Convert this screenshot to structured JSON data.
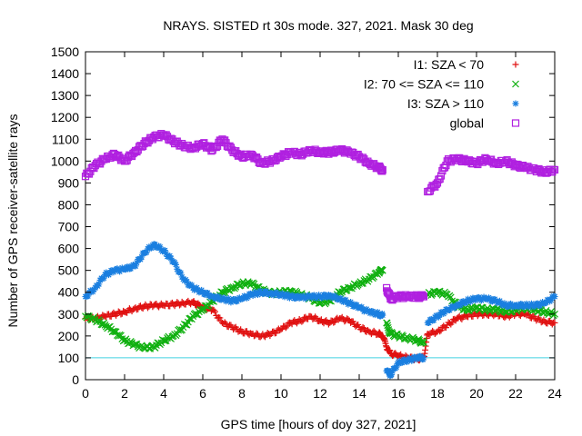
{
  "chart_data": {
    "type": "scatter",
    "title": "NRAYS. SISTED rt 30s mode. 327, 2021. Mask 30 deg",
    "xlabel": "GPS time [hours of doy 327, 2021]",
    "ylabel": "Number of GPS receiver-satellite rays",
    "xlim": [
      0,
      24
    ],
    "ylim": [
      0,
      1500
    ],
    "xticks": [
      0,
      2,
      4,
      6,
      8,
      10,
      12,
      14,
      16,
      18,
      20,
      22,
      24
    ],
    "yticks": [
      0,
      100,
      200,
      300,
      400,
      500,
      600,
      700,
      800,
      900,
      1000,
      1100,
      1200,
      1300,
      1400,
      1500
    ],
    "legend_position": "top-right",
    "reference_line": {
      "y": 100,
      "color": "#40d0e0"
    },
    "series": [
      {
        "name": "I1: SZA < 70",
        "marker": "+",
        "color": "#e01010",
        "points": [
          [
            0,
            280
          ],
          [
            0.5,
            280
          ],
          [
            1,
            290
          ],
          [
            1.5,
            300
          ],
          [
            2,
            310
          ],
          [
            2.5,
            325
          ],
          [
            3,
            335
          ],
          [
            3.5,
            340
          ],
          [
            4,
            340
          ],
          [
            4.5,
            345
          ],
          [
            5,
            350
          ],
          [
            5.5,
            355
          ],
          [
            5.8,
            340
          ],
          [
            6,
            330
          ],
          [
            6.5,
            320
          ],
          [
            7,
            260
          ],
          [
            7.5,
            240
          ],
          [
            8,
            220
          ],
          [
            8.5,
            210
          ],
          [
            9,
            200
          ],
          [
            9.5,
            210
          ],
          [
            10,
            230
          ],
          [
            10.5,
            260
          ],
          [
            11,
            270
          ],
          [
            11.5,
            290
          ],
          [
            12,
            270
          ],
          [
            12.5,
            260
          ],
          [
            13,
            280
          ],
          [
            13.5,
            270
          ],
          [
            14,
            240
          ],
          [
            14.5,
            220
          ],
          [
            15,
            210
          ],
          [
            15.2,
            200
          ],
          [
            15.4,
            150
          ],
          [
            15.6,
            120
          ],
          [
            16,
            110
          ],
          [
            16.5,
            100
          ],
          [
            17,
            95
          ],
          [
            17.3,
            100
          ],
          [
            17.5,
            210
          ],
          [
            18,
            220
          ],
          [
            18.5,
            250
          ],
          [
            19,
            280
          ],
          [
            19.5,
            290
          ],
          [
            20,
            300
          ],
          [
            20.5,
            300
          ],
          [
            21,
            300
          ],
          [
            21.5,
            290
          ],
          [
            22,
            300
          ],
          [
            22.5,
            300
          ],
          [
            23,
            280
          ],
          [
            23.5,
            265
          ],
          [
            24,
            260
          ]
        ]
      },
      {
        "name": "I2: 70 <= SZA <= 110",
        "marker": "x",
        "color": "#10b010",
        "points": [
          [
            0,
            290
          ],
          [
            0.5,
            275
          ],
          [
            1,
            250
          ],
          [
            1.5,
            220
          ],
          [
            2,
            180
          ],
          [
            2.5,
            160
          ],
          [
            3,
            145
          ],
          [
            3.5,
            150
          ],
          [
            4,
            180
          ],
          [
            4.5,
            200
          ],
          [
            5,
            240
          ],
          [
            5.5,
            290
          ],
          [
            6,
            320
          ],
          [
            6.5,
            360
          ],
          [
            7,
            400
          ],
          [
            7.5,
            420
          ],
          [
            8,
            440
          ],
          [
            8.5,
            440
          ],
          [
            9,
            410
          ],
          [
            9.5,
            395
          ],
          [
            10,
            400
          ],
          [
            10.5,
            405
          ],
          [
            11,
            390
          ],
          [
            11.5,
            375
          ],
          [
            12,
            350
          ],
          [
            12.5,
            360
          ],
          [
            13,
            400
          ],
          [
            13.5,
            420
          ],
          [
            14,
            440
          ],
          [
            14.5,
            460
          ],
          [
            15,
            490
          ],
          [
            15.2,
            500
          ],
          [
            15.4,
            260
          ],
          [
            15.6,
            210
          ],
          [
            16,
            200
          ],
          [
            16.5,
            190
          ],
          [
            17,
            180
          ],
          [
            17.3,
            170
          ],
          [
            17.5,
            390
          ],
          [
            18,
            400
          ],
          [
            18.5,
            390
          ],
          [
            19,
            340
          ],
          [
            19.5,
            320
          ],
          [
            20,
            330
          ],
          [
            20.5,
            320
          ],
          [
            21,
            320
          ],
          [
            21.5,
            310
          ],
          [
            22,
            320
          ],
          [
            22.5,
            330
          ],
          [
            23,
            320
          ],
          [
            23.5,
            310
          ],
          [
            24,
            300
          ]
        ]
      },
      {
        "name": "I3: SZA > 110",
        "marker": "*",
        "color": "#1a7fe0",
        "points": [
          [
            0,
            380
          ],
          [
            0.5,
            420
          ],
          [
            1,
            480
          ],
          [
            1.5,
            500
          ],
          [
            2,
            505
          ],
          [
            2.5,
            520
          ],
          [
            3,
            580
          ],
          [
            3.5,
            620
          ],
          [
            4,
            590
          ],
          [
            4.5,
            540
          ],
          [
            5,
            460
          ],
          [
            5.5,
            420
          ],
          [
            6,
            400
          ],
          [
            6.5,
            380
          ],
          [
            7,
            370
          ],
          [
            7.5,
            360
          ],
          [
            8,
            370
          ],
          [
            8.5,
            390
          ],
          [
            9,
            400
          ],
          [
            9.5,
            395
          ],
          [
            10,
            390
          ],
          [
            10.5,
            380
          ],
          [
            11,
            375
          ],
          [
            11.5,
            380
          ],
          [
            12,
            380
          ],
          [
            12.5,
            385
          ],
          [
            13,
            370
          ],
          [
            13.5,
            350
          ],
          [
            14,
            330
          ],
          [
            14.5,
            310
          ],
          [
            15,
            300
          ],
          [
            15.2,
            295
          ],
          [
            15.4,
            40
          ],
          [
            15.6,
            20
          ],
          [
            16,
            80
          ],
          [
            16.5,
            90
          ],
          [
            17,
            100
          ],
          [
            17.3,
            100
          ],
          [
            17.5,
            260
          ],
          [
            18,
            290
          ],
          [
            18.5,
            320
          ],
          [
            19,
            340
          ],
          [
            19.5,
            360
          ],
          [
            20,
            370
          ],
          [
            20.5,
            370
          ],
          [
            21,
            360
          ],
          [
            21.5,
            340
          ],
          [
            22,
            340
          ],
          [
            22.5,
            340
          ],
          [
            23,
            340
          ],
          [
            23.5,
            350
          ],
          [
            24,
            380
          ]
        ]
      },
      {
        "name": "global",
        "marker": "square",
        "color": "#b020e0",
        "points": [
          [
            0,
            930
          ],
          [
            0.5,
            980
          ],
          [
            1,
            1010
          ],
          [
            1.5,
            1030
          ],
          [
            2,
            1000
          ],
          [
            2.5,
            1040
          ],
          [
            3,
            1080
          ],
          [
            3.5,
            1110
          ],
          [
            4,
            1120
          ],
          [
            4.5,
            1090
          ],
          [
            5,
            1070
          ],
          [
            5.5,
            1060
          ],
          [
            6,
            1080
          ],
          [
            6.5,
            1050
          ],
          [
            7,
            1100
          ],
          [
            7.5,
            1050
          ],
          [
            8,
            1020
          ],
          [
            8.5,
            1030
          ],
          [
            9,
            990
          ],
          [
            9.5,
            1000
          ],
          [
            10,
            1020
          ],
          [
            10.5,
            1040
          ],
          [
            11,
            1030
          ],
          [
            11.5,
            1050
          ],
          [
            12,
            1040
          ],
          [
            12.5,
            1040
          ],
          [
            13,
            1050
          ],
          [
            13.5,
            1040
          ],
          [
            14,
            1020
          ],
          [
            14.5,
            990
          ],
          [
            15,
            970
          ],
          [
            15.2,
            960
          ],
          [
            15.4,
            420
          ],
          [
            15.6,
            370
          ],
          [
            16,
            380
          ],
          [
            16.5,
            380
          ],
          [
            17,
            380
          ],
          [
            17.3,
            380
          ],
          [
            17.5,
            860
          ],
          [
            18,
            900
          ],
          [
            18.5,
            1000
          ],
          [
            19,
            1010
          ],
          [
            19.5,
            1000
          ],
          [
            20,
            990
          ],
          [
            20.5,
            1010
          ],
          [
            21,
            990
          ],
          [
            21.5,
            1000
          ],
          [
            22,
            980
          ],
          [
            22.5,
            970
          ],
          [
            23,
            960
          ],
          [
            23.5,
            950
          ],
          [
            24,
            960
          ]
        ]
      }
    ]
  }
}
